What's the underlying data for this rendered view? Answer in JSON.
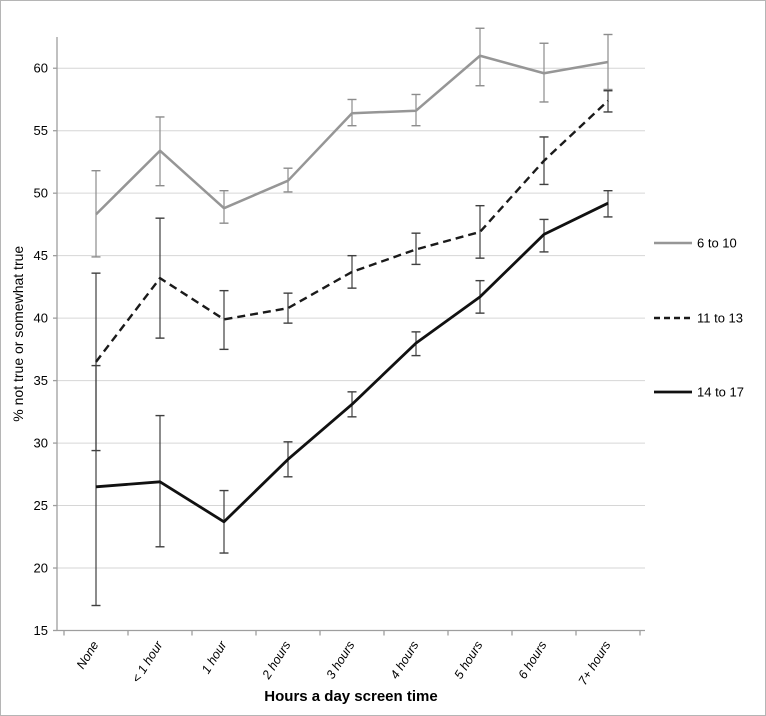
{
  "chart_data": {
    "type": "line",
    "title": "",
    "xlabel": "Hours a day screen time",
    "ylabel": "% not true or somewhat true",
    "categories": [
      "None",
      "< 1 hour",
      "1 hour",
      "2 hours",
      "3 hours",
      "4 hours",
      "5 hours",
      "6 hours",
      "7+ hours"
    ],
    "yticks": [
      15,
      20,
      25,
      30,
      35,
      40,
      45,
      50,
      55,
      60
    ],
    "ylim": [
      15,
      62.5
    ],
    "grid": true,
    "legend_position": "right-outside",
    "error_bars": true,
    "series": [
      {
        "name": "6 to 10",
        "style": "solid",
        "color": "#969696",
        "line_width": 2.5,
        "values": [
          48.3,
          53.4,
          48.8,
          51.0,
          56.4,
          56.6,
          61.0,
          59.6,
          60.5
        ],
        "ci_low": [
          44.9,
          50.6,
          47.6,
          50.1,
          55.4,
          55.4,
          58.6,
          57.3,
          58.3
        ],
        "ci_high": [
          51.8,
          56.1,
          50.2,
          52.0,
          57.5,
          57.9,
          63.2,
          62.0,
          62.7
        ]
      },
      {
        "name": "11 to 13",
        "style": "dashed",
        "color": "#1a1a1a",
        "line_width": 2.4,
        "values": [
          36.5,
          43.2,
          39.9,
          40.8,
          43.7,
          45.5,
          46.9,
          52.6,
          57.4
        ],
        "ci_low": [
          29.4,
          38.4,
          37.5,
          39.6,
          42.4,
          44.3,
          44.8,
          50.7,
          56.5
        ],
        "ci_high": [
          43.6,
          48.0,
          42.2,
          42.0,
          45.0,
          46.8,
          49.0,
          54.5,
          58.2
        ]
      },
      {
        "name": "14 to 17",
        "style": "solid",
        "color": "#111111",
        "line_width": 2.8,
        "values": [
          26.5,
          26.9,
          23.7,
          28.7,
          33.1,
          38.0,
          41.7,
          46.7,
          49.2
        ],
        "ci_low": [
          17.0,
          21.7,
          21.2,
          27.3,
          32.1,
          37.0,
          40.4,
          45.3,
          48.1
        ],
        "ci_high": [
          36.2,
          32.2,
          26.2,
          30.1,
          34.1,
          38.9,
          43.0,
          47.9,
          50.2
        ]
      }
    ],
    "colors": {
      "gridline": "#d6d6d6",
      "axis": "#9e9e9e",
      "error_bar_gray_series": "#8c8c8c",
      "error_bar_dark_series": "#3f3f3f"
    }
  }
}
